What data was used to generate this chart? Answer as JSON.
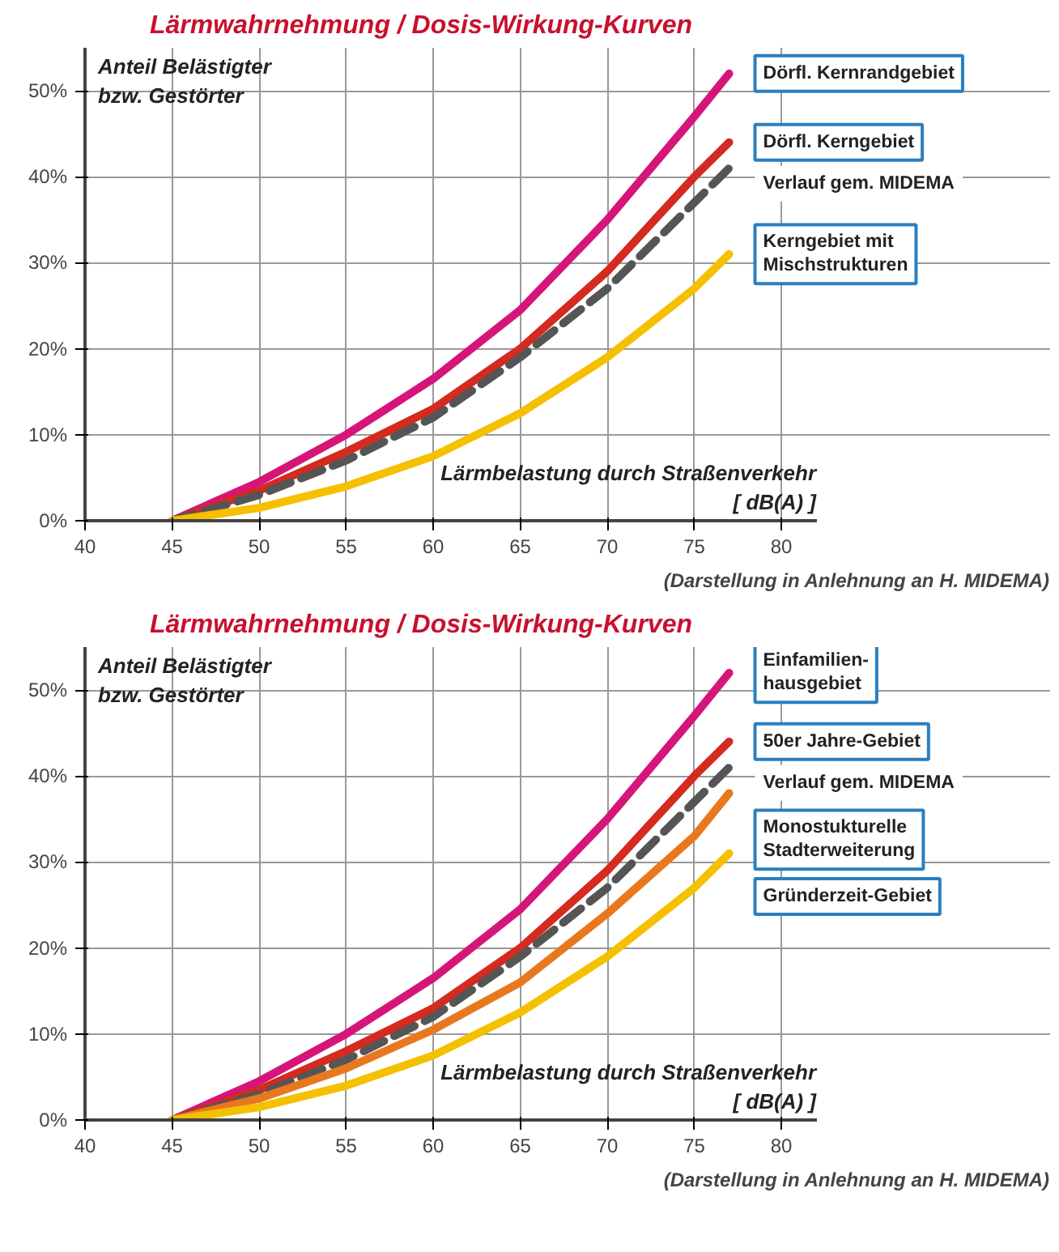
{
  "chart_data": [
    {
      "type": "line",
      "title": "Lärmwahrnehmung / Dosis-Wirkung-Kurven",
      "ylabel": "Anteil Belästigter\nbzw. Gestörter",
      "xlabel": "Lärmbelastung durch Straßenverkehr\n[ dB(A) ]",
      "xlim": [
        40,
        82
      ],
      "ylim": [
        0,
        55
      ],
      "xticks": [
        40,
        45,
        50,
        55,
        60,
        65,
        70,
        75,
        80
      ],
      "yticks": [
        {
          "value": 0,
          "label": "0%"
        },
        {
          "value": 10,
          "label": "10%"
        },
        {
          "value": 20,
          "label": "20%"
        },
        {
          "value": 30,
          "label": "30%"
        },
        {
          "value": 40,
          "label": "40%"
        },
        {
          "value": 50,
          "label": "50%"
        }
      ],
      "grid": true,
      "x": [
        45,
        50,
        55,
        60,
        65,
        70,
        75,
        77
      ],
      "series": [
        {
          "name": "Dörfl. Kernrandgebiet",
          "color": "#d6157a",
          "values": [
            0,
            4.5,
            10,
            16.5,
            24.5,
            35,
            47,
            52
          ],
          "line_style": "solid"
        },
        {
          "name": "Dörfl. Kerngebiet",
          "color": "#d42a20",
          "values": [
            0,
            3.5,
            8,
            13,
            20,
            29,
            40,
            44
          ],
          "line_style": "solid"
        },
        {
          "name": "Verlauf gem. MIDEMA",
          "color": "#555555",
          "values": [
            0,
            3,
            7,
            12,
            19,
            27,
            37,
            41
          ],
          "line_style": "dashed"
        },
        {
          "name": "Kerngebiet mit\nMischstrukturen",
          "color": "#f5c000",
          "values": [
            0,
            1.5,
            4,
            7.5,
            12.5,
            19,
            27,
            31
          ],
          "line_style": "solid"
        }
      ],
      "annotations": [
        "(Darstellung in Anlehnung an H. MIDEMA)"
      ]
    },
    {
      "type": "line",
      "title": "Lärmwahrnehmung / Dosis-Wirkung-Kurven",
      "ylabel": "Anteil Belästigter\nbzw. Gestörter",
      "xlabel": "Lärmbelastung durch Straßenverkehr\n[ dB(A) ]",
      "xlim": [
        40,
        82
      ],
      "ylim": [
        0,
        55
      ],
      "xticks": [
        40,
        45,
        50,
        55,
        60,
        65,
        70,
        75,
        80
      ],
      "yticks": [
        {
          "value": 0,
          "label": "0%"
        },
        {
          "value": 10,
          "label": "10%"
        },
        {
          "value": 20,
          "label": "20%"
        },
        {
          "value": 30,
          "label": "30%"
        },
        {
          "value": 40,
          "label": "40%"
        },
        {
          "value": 50,
          "label": "50%"
        }
      ],
      "grid": true,
      "x": [
        45,
        50,
        55,
        60,
        65,
        70,
        75,
        77
      ],
      "series": [
        {
          "name": "Einfamilien-\nhausgebiet",
          "color": "#d6157a",
          "values": [
            0,
            4.5,
            10,
            16.5,
            24.5,
            35,
            47,
            52
          ],
          "line_style": "solid"
        },
        {
          "name": "50er Jahre-Gebiet",
          "color": "#d42a20",
          "values": [
            0,
            3.5,
            8,
            13,
            20,
            29,
            40,
            44
          ],
          "line_style": "solid"
        },
        {
          "name": "Verlauf gem. MIDEMA",
          "color": "#555555",
          "values": [
            0,
            3,
            7,
            12,
            19,
            27,
            37,
            41
          ],
          "line_style": "dashed"
        },
        {
          "name": "Monostukturelle\nStadterweiterung",
          "color": "#e8781e",
          "values": [
            0,
            2.5,
            6,
            10.5,
            16,
            24,
            33,
            38
          ],
          "line_style": "solid"
        },
        {
          "name": "Gründerzeit-Gebiet",
          "color": "#f5c000",
          "values": [
            0,
            1.5,
            4,
            7.5,
            12.5,
            19,
            27,
            31
          ],
          "line_style": "solid"
        }
      ],
      "annotations": [
        "(Darstellung in Anlehnung an H. MIDEMA)"
      ]
    }
  ]
}
